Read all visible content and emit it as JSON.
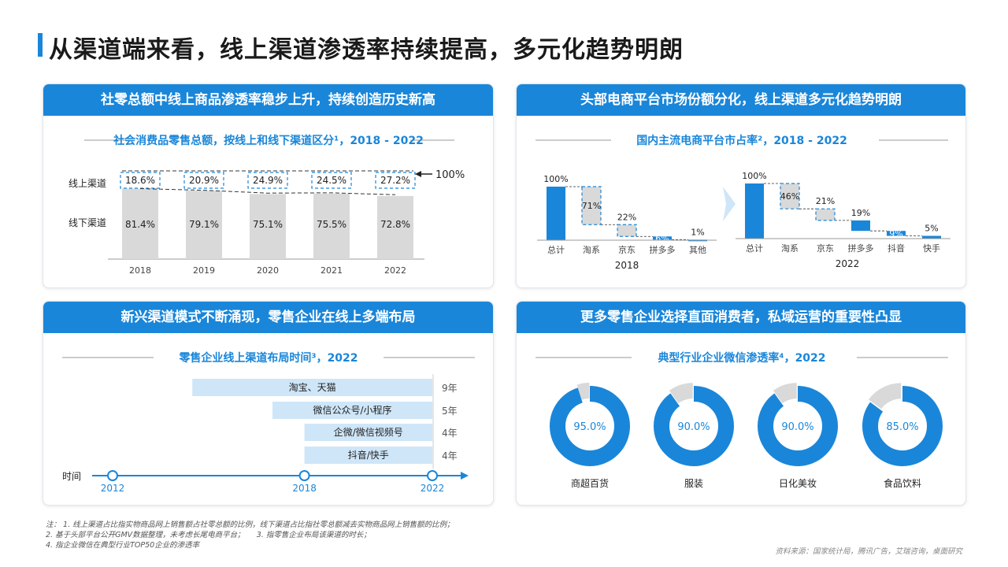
{
  "title": "从渠道端来看，线上渠道渗透率持续提高，多元化趋势明朗",
  "colors": {
    "blue": "#1a86d9",
    "grey": "#d9d9d9",
    "light_blue": "#cfe6f8",
    "dashed": "#1a86d9"
  },
  "panel1": {
    "header": "社零总额中线上商品渗透率稳步上升，持续创造历史新高",
    "subtitle": "社会消费品零售总额，按线上和线下渠道区分¹，2018 - 2022",
    "row_online": "线上渠道",
    "row_offline": "线下渠道",
    "total_label": "100%"
  },
  "panel2": {
    "header": "头部电商平台市场份额分化，线上渠道多元化趋势明朗",
    "subtitle": "国内主流电商平台市占率²，2018 - 2022"
  },
  "panel3": {
    "header": "新兴渠道模式不断涌现，零售企业在线上多端布局",
    "subtitle": "零售企业线上渠道布局时间³，2022",
    "axis_label": "时间"
  },
  "panel4": {
    "header": "更多零售企业选择直面消费者，私域运营的重要性凸显",
    "subtitle": "典型行业企业微信渗透率⁴，2022"
  },
  "chart_data": [
    {
      "type": "bar",
      "stacked": true,
      "categories": [
        "2018",
        "2019",
        "2020",
        "2021",
        "2022"
      ],
      "series": [
        {
          "name": "线上渠道",
          "values": [
            18.6,
            20.9,
            24.9,
            24.5,
            27.2
          ],
          "labels": [
            "18.6%",
            "20.9%",
            "24.9%",
            "24.5%",
            "27.2%"
          ]
        },
        {
          "name": "线下渠道",
          "values": [
            81.4,
            79.1,
            75.1,
            75.5,
            72.8
          ],
          "labels": [
            "81.4%",
            "79.1%",
            "75.1%",
            "75.5%",
            "72.8%"
          ]
        }
      ],
      "ylim": [
        0,
        100
      ]
    },
    {
      "type": "bar",
      "subtype": "waterfall",
      "group": "2018",
      "categories": [
        "总计",
        "淘系",
        "京东",
        "拼多多",
        "其他"
      ],
      "values": [
        100,
        71,
        22,
        6,
        1
      ],
      "labels": [
        "100%",
        "71%",
        "22%",
        "6%",
        "1%"
      ]
    },
    {
      "type": "bar",
      "subtype": "waterfall",
      "group": "2022",
      "categories": [
        "总计",
        "淘系",
        "京东",
        "拼多多",
        "抖音",
        "快手"
      ],
      "values": [
        100,
        46,
        21,
        19,
        9,
        5
      ],
      "labels": [
        "100%",
        "46%",
        "21%",
        "19%",
        "9%",
        "5%"
      ]
    },
    {
      "type": "bar",
      "subtype": "timeline",
      "categories": [
        "淘宝、天猫",
        "微信公众号/小程序",
        "企微/微信视频号",
        "抖音/快手"
      ],
      "values": [
        9,
        5,
        4,
        4
      ],
      "labels": [
        "9年",
        "5年",
        "4年",
        "4年"
      ],
      "x_ticks": [
        "2012",
        "2018",
        "2022"
      ],
      "xlim": [
        2012,
        2022
      ]
    },
    {
      "type": "pie",
      "subtype": "donut",
      "categories": [
        "商超百货",
        "服装",
        "日化美妆",
        "食品饮料"
      ],
      "values": [
        95.0,
        90.0,
        90.0,
        85.0
      ],
      "labels": [
        "95.0%",
        "90.0%",
        "90.0%",
        "85.0%"
      ]
    }
  ],
  "notes": [
    "注： 1. 线上渠道占比指实物商品网上销售额占社零总额的比例，线下渠道占比指社零总额减去实物商品网上销售额的比例；",
    "2. 基于头部平台公开GMV数据整理，未考虑长尾电商平台；     3. 指零售企业布局该渠道的时长；",
    "4. 指企业微信在典型行业TOP50企业的渗透率"
  ],
  "source": "资料来源：国家统计局，腾讯广告，艾瑞咨询，桌面研究"
}
